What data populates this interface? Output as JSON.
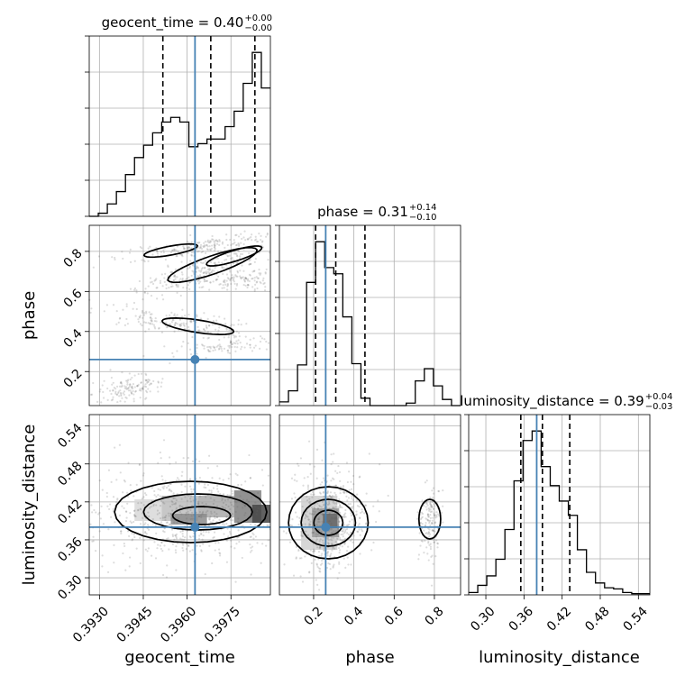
{
  "chart_data": {
    "type": "corner",
    "parameters": [
      "geocent_time",
      "phase",
      "luminosity_distance"
    ],
    "ranges": {
      "geocent_time": [
        0.39265,
        0.39885
      ],
      "phase": [
        0.03,
        0.93
      ],
      "luminosity_distance": [
        0.273,
        0.558
      ]
    },
    "ticks": {
      "geocent_time": [
        {
          "value": 0.393,
          "label": "0.3930"
        },
        {
          "value": 0.3945,
          "label": "0.3945"
        },
        {
          "value": 0.396,
          "label": "0.3960"
        },
        {
          "value": 0.3975,
          "label": "0.3975"
        }
      ],
      "phase": [
        {
          "value": 0.2,
          "label": "0.2"
        },
        {
          "value": 0.4,
          "label": "0.4"
        },
        {
          "value": 0.6,
          "label": "0.6"
        },
        {
          "value": 0.8,
          "label": "0.8"
        }
      ],
      "luminosity_distance": [
        {
          "value": 0.3,
          "label": "0.30"
        },
        {
          "value": 0.36,
          "label": "0.36"
        },
        {
          "value": 0.42,
          "label": "0.42"
        },
        {
          "value": 0.48,
          "label": "0.48"
        },
        {
          "value": 0.54,
          "label": "0.54"
        }
      ]
    },
    "truths": {
      "geocent_time": 0.39627,
      "phase": 0.26,
      "luminosity_distance": 0.38
    },
    "titles": [
      {
        "param": "geocent_time",
        "text": "geocent_time = 0.40",
        "plus": "+0.00",
        "minus": "−0.00"
      },
      {
        "param": "phase",
        "text": "phase = 0.31",
        "plus": "+0.14",
        "minus": "−0.10"
      },
      {
        "param": "luminosity_distance",
        "text": "luminosity_distance = 0.39",
        "plus": "+0.04",
        "minus": "−0.03"
      }
    ],
    "quantiles": {
      "geocent_time": [
        0.39517,
        0.39681,
        0.39832
      ],
      "phase": [
        0.21,
        0.31,
        0.455
      ],
      "luminosity_distance": [
        0.355,
        0.389,
        0.432
      ]
    },
    "histograms": {
      "geocent_time": {
        "edges": [
          0.39265,
          0.39296,
          0.39327,
          0.39358,
          0.39389,
          0.3942,
          0.39451,
          0.39482,
          0.39513,
          0.39544,
          0.39575,
          0.39606,
          0.39637,
          0.39668,
          0.39699,
          0.3973,
          0.39761,
          0.39792,
          0.39823,
          0.39854,
          0.39885
        ],
        "counts": [
          0,
          2,
          8,
          16,
          27,
          38,
          46,
          54,
          61,
          64,
          61,
          45,
          47,
          50,
          50,
          58,
          68,
          86,
          106,
          83
        ]
      },
      "phase": {
        "edges": [
          0.03,
          0.075,
          0.12,
          0.165,
          0.21,
          0.255,
          0.3,
          0.345,
          0.39,
          0.435,
          0.48,
          0.525,
          0.57,
          0.615,
          0.66,
          0.705,
          0.75,
          0.795,
          0.84,
          0.885,
          0.93
        ],
        "counts": [
          3,
          12,
          33,
          100,
          133,
          112,
          107,
          72,
          34,
          6,
          0,
          0,
          0,
          0,
          2,
          20,
          30,
          16,
          5,
          0
        ]
      },
      "luminosity_distance": {
        "edges": [
          0.273,
          0.2873,
          0.3015,
          0.3158,
          0.33,
          0.3443,
          0.3585,
          0.3728,
          0.387,
          0.4013,
          0.4155,
          0.4298,
          0.444,
          0.4583,
          0.4725,
          0.4868,
          0.501,
          0.5153,
          0.5295,
          0.5438,
          0.558
        ],
        "counts": [
          2,
          8,
          16,
          30,
          55,
          96,
          130,
          138,
          108,
          92,
          79,
          67,
          38,
          19,
          10,
          6,
          5,
          2,
          1,
          1
        ]
      }
    },
    "grid": true
  }
}
